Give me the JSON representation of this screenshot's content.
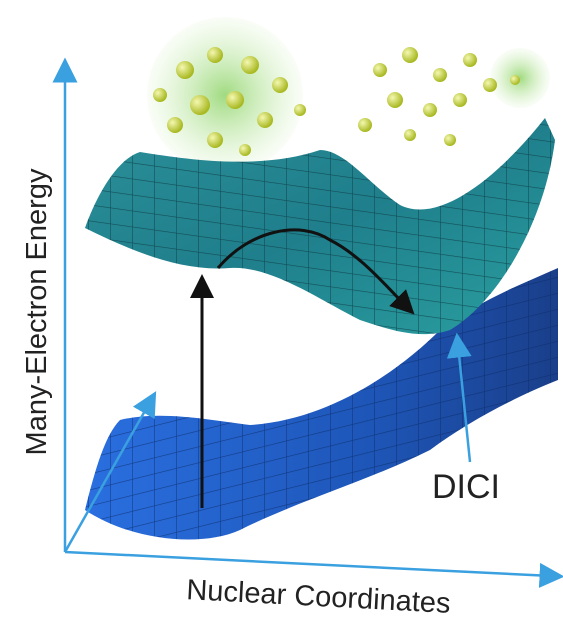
{
  "axis_labels": {
    "y": "Many-Electron Energy",
    "x": "Nuclear Coordinates"
  },
  "annotation": "DICI"
}
